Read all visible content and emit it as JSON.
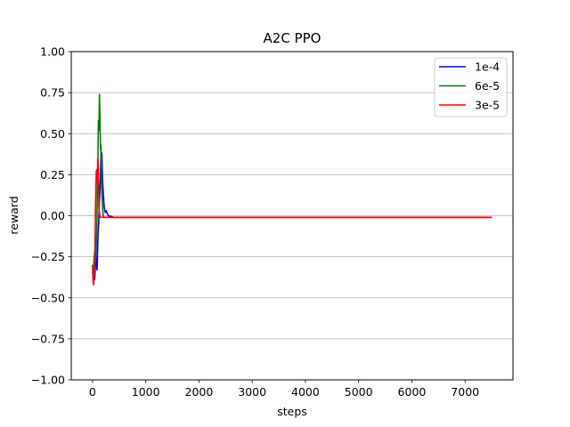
{
  "chart_data": {
    "type": "line",
    "title": "A2C PPO",
    "xlabel": "steps",
    "ylabel": "reward",
    "xlim": [
      -400,
      7900
    ],
    "ylim": [
      -1.0,
      1.0
    ],
    "xticks": [
      0,
      1000,
      2000,
      3000,
      4000,
      5000,
      6000,
      7000
    ],
    "xtick_labels": [
      "0",
      "1000",
      "2000",
      "3000",
      "4000",
      "5000",
      "6000",
      "7000"
    ],
    "yticks": [
      -1.0,
      -0.75,
      -0.5,
      -0.25,
      0.0,
      0.25,
      0.5,
      0.75,
      1.0
    ],
    "ytick_labels": [
      "−1.00",
      "−0.75",
      "−0.50",
      "−0.25",
      "0.00",
      "0.25",
      "0.50",
      "0.75",
      "1.00"
    ],
    "grid": "horizontal",
    "legend_position": "top-right",
    "series": [
      {
        "name": "1e-4",
        "color": "#0000ff",
        "x": [
          0,
          20,
          40,
          55,
          70,
          85,
          100,
          115,
          130,
          145,
          160,
          175,
          190,
          205,
          220,
          240,
          260,
          280,
          300,
          400,
          1000,
          2000,
          3000,
          4000,
          5000,
          6000,
          7000,
          7500
        ],
        "y": [
          -0.3,
          -0.36,
          -0.39,
          -0.3,
          -0.25,
          -0.33,
          -0.15,
          -0.05,
          0.1,
          0.2,
          0.39,
          0.38,
          0.2,
          0.12,
          0.05,
          0.02,
          0.03,
          0.01,
          0.0,
          -0.01,
          -0.01,
          -0.01,
          -0.01,
          -0.01,
          -0.01,
          -0.01,
          -0.01,
          -0.01
        ]
      },
      {
        "name": "6e-5",
        "color": "#008000",
        "x": [
          0,
          20,
          40,
          55,
          70,
          85,
          100,
          110,
          120,
          130,
          140,
          150,
          160,
          170,
          180,
          200,
          220,
          250,
          300,
          400,
          1000,
          2000,
          3000,
          4000,
          5000,
          6000,
          7000,
          7500
        ],
        "y": [
          -0.35,
          -0.3,
          -0.22,
          -0.28,
          -0.2,
          0.0,
          0.3,
          0.58,
          0.52,
          0.74,
          0.6,
          0.4,
          0.43,
          0.2,
          0.1,
          0.0,
          -0.01,
          -0.01,
          -0.01,
          -0.01,
          -0.01,
          -0.01,
          -0.01,
          -0.01,
          -0.01,
          -0.01,
          -0.01,
          -0.01
        ]
      },
      {
        "name": "3e-5",
        "color": "#ff0000",
        "x": [
          0,
          10,
          20,
          30,
          40,
          50,
          60,
          70,
          80,
          90,
          100,
          110,
          120,
          140,
          160,
          200,
          300,
          400,
          1000,
          2000,
          3000,
          4000,
          5000,
          6000,
          7000,
          7500
        ],
        "y": [
          -0.3,
          -0.4,
          -0.42,
          -0.35,
          -0.3,
          -0.1,
          0.1,
          0.27,
          0.28,
          0.2,
          0.35,
          0.3,
          0.05,
          -0.01,
          -0.01,
          -0.01,
          -0.01,
          -0.01,
          -0.01,
          -0.01,
          -0.01,
          -0.01,
          -0.01,
          -0.01,
          -0.01,
          -0.01
        ]
      }
    ]
  }
}
